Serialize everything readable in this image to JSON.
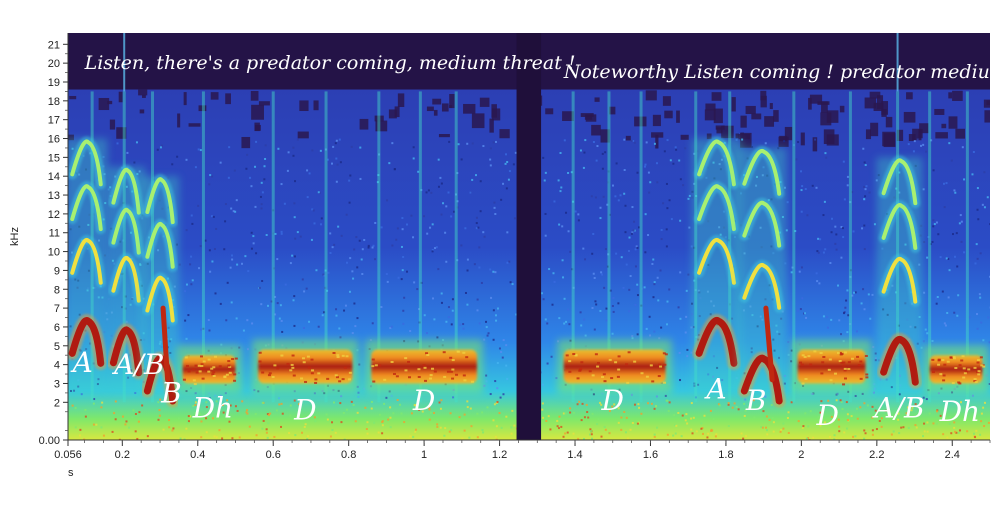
{
  "chart_data": {
    "type": "heatmap",
    "title": "",
    "xlabel": "s",
    "ylabel": "kHz",
    "xlim": [
      0.056,
      2.5
    ],
    "ylim": [
      0,
      21.6
    ],
    "x_ticks": [
      {
        "value": 0.056,
        "label": "0.056",
        "highlight": true
      },
      {
        "value": 0.2,
        "label": "0.2"
      },
      {
        "value": 0.4,
        "label": "0.4"
      },
      {
        "value": 0.6,
        "label": "0.6"
      },
      {
        "value": 0.8,
        "label": "0.8"
      },
      {
        "value": 1.0,
        "label": "1"
      },
      {
        "value": 1.2,
        "label": "1.2"
      },
      {
        "value": 1.4,
        "label": "1.4"
      },
      {
        "value": 1.6,
        "label": "1.6"
      },
      {
        "value": 1.8,
        "label": "1.8"
      },
      {
        "value": 2.0,
        "label": "2"
      },
      {
        "value": 2.2,
        "label": "2.2"
      },
      {
        "value": 2.4,
        "label": "2.4"
      }
    ],
    "y_ticks": [
      {
        "value": 0,
        "label": "0.00",
        "highlight": true
      },
      {
        "value": 2,
        "label": "2"
      },
      {
        "value": 3,
        "label": "3"
      },
      {
        "value": 4,
        "label": "4"
      },
      {
        "value": 5,
        "label": "5"
      },
      {
        "value": 6,
        "label": "6"
      },
      {
        "value": 7,
        "label": "7"
      },
      {
        "value": 8,
        "label": "8"
      },
      {
        "value": 9,
        "label": "9"
      },
      {
        "value": 10,
        "label": "10"
      },
      {
        "value": 11,
        "label": "11"
      },
      {
        "value": 12,
        "label": "12"
      },
      {
        "value": 13,
        "label": "13"
      },
      {
        "value": 14,
        "label": "14"
      },
      {
        "value": 15,
        "label": "15"
      },
      {
        "value": 16,
        "label": "16"
      },
      {
        "value": 17,
        "label": "17"
      },
      {
        "value": 18,
        "label": "18"
      },
      {
        "value": 19,
        "label": "19"
      },
      {
        "value": 20,
        "label": "20"
      },
      {
        "value": 21,
        "label": "21"
      }
    ],
    "grid": false,
    "colormap": [
      "#1a0a3d",
      "#2a3fb0",
      "#2f8ff0",
      "#35d0e0",
      "#7ff06a",
      "#f0f040",
      "#f59a20",
      "#d03010",
      "#7a0a0a"
    ],
    "silence_gaps": [
      {
        "start": 1.245,
        "end": 1.31
      }
    ],
    "calls": [
      {
        "label": "A",
        "start": 0.06,
        "end": 0.15,
        "type": "harmonic-chevron",
        "f_low": 5.5,
        "f_high": 15.0
      },
      {
        "label": "A/B",
        "start": 0.17,
        "end": 0.25,
        "type": "harmonic-chevron",
        "f_low": 5.0,
        "f_high": 13.5
      },
      {
        "label": "B",
        "start": 0.26,
        "end": 0.34,
        "type": "harmonic-chevron",
        "f_low": 3.5,
        "f_high": 13.0
      },
      {
        "label": "Dh",
        "start": 0.36,
        "end": 0.5,
        "type": "band",
        "f_low": 3.0,
        "f_high": 4.5
      },
      {
        "label": "D",
        "start": 0.56,
        "end": 0.81,
        "type": "band",
        "f_low": 3.0,
        "f_high": 4.8
      },
      {
        "label": "D",
        "start": 0.86,
        "end": 1.14,
        "type": "band",
        "f_low": 3.0,
        "f_high": 4.8
      },
      {
        "label": "D",
        "start": 1.37,
        "end": 1.64,
        "type": "band",
        "f_low": 3.0,
        "f_high": 4.8
      },
      {
        "label": "A",
        "start": 1.72,
        "end": 1.83,
        "type": "harmonic-chevron",
        "f_low": 5.5,
        "f_high": 15.0
      },
      {
        "label": "B",
        "start": 1.84,
        "end": 1.95,
        "type": "harmonic-chevron",
        "f_low": 3.5,
        "f_high": 14.5
      },
      {
        "label": "D",
        "start": 1.99,
        "end": 2.17,
        "type": "band",
        "f_low": 3.0,
        "f_high": 4.8
      },
      {
        "label": "A/B",
        "start": 2.21,
        "end": 2.31,
        "type": "harmonic-chevron",
        "f_low": 4.5,
        "f_high": 14.0
      },
      {
        "label": "Dh",
        "start": 2.34,
        "end": 2.48,
        "type": "band",
        "f_low": 3.0,
        "f_high": 4.5
      }
    ],
    "annotations": [
      {
        "text": "Listen, there's a predator coming, medium threat !",
        "x": 0.1,
        "y": 19.7
      },
      {
        "text": "Noteworthy Listen coming ! predator medium",
        "x": 1.37,
        "y": 19.2
      },
      {
        "text": "A",
        "x": 0.095,
        "y": 3.6
      },
      {
        "text": "A/B",
        "x": 0.245,
        "y": 3.5
      },
      {
        "text": "B",
        "x": 0.33,
        "y": 2.0
      },
      {
        "text": "Dh",
        "x": 0.44,
        "y": 1.2
      },
      {
        "text": "D",
        "x": 0.685,
        "y": 1.1
      },
      {
        "text": "D",
        "x": 1.0,
        "y": 1.6
      },
      {
        "text": "D",
        "x": 1.5,
        "y": 1.6
      },
      {
        "text": "A",
        "x": 1.775,
        "y": 2.2
      },
      {
        "text": "B",
        "x": 1.88,
        "y": 1.6
      },
      {
        "text": "D",
        "x": 2.07,
        "y": 0.8
      },
      {
        "text": "A/B",
        "x": 2.26,
        "y": 1.2
      },
      {
        "text": "Dh",
        "x": 2.42,
        "y": 1.0
      }
    ]
  }
}
